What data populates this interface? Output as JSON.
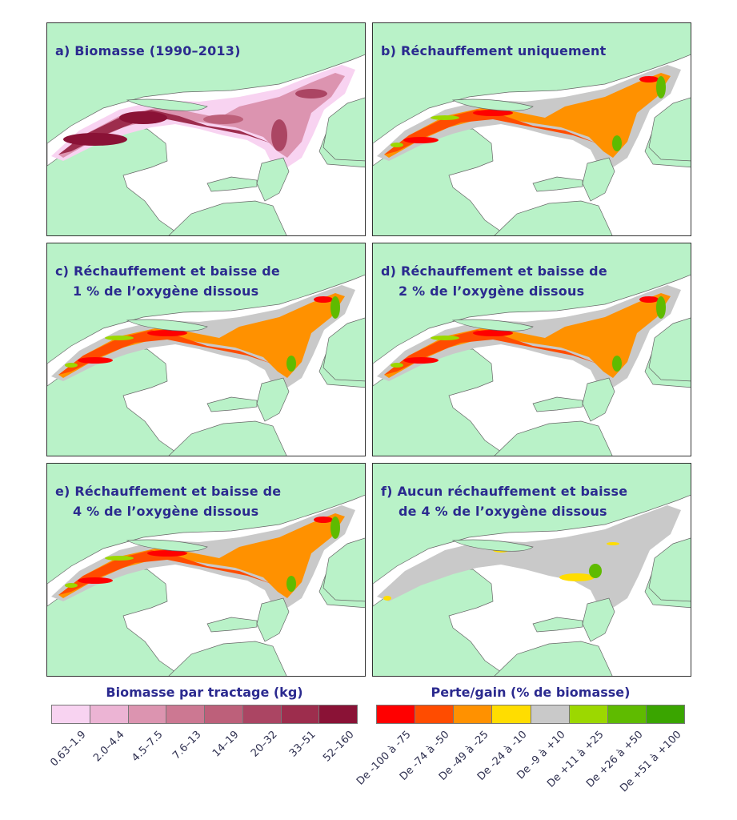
{
  "panels": [
    {
      "id": "a",
      "letter": "a)",
      "line1": "Biomasse (1990–2013)",
      "line2": "",
      "kind": "biomass"
    },
    {
      "id": "b",
      "letter": "b)",
      "line1": "Réchauffement uniquement",
      "line2": "",
      "kind": "warm"
    },
    {
      "id": "c",
      "letter": "c)",
      "line1": "Réchauffement et baisse de",
      "line2": "1 % de l’oxygène dissous",
      "kind": "warm"
    },
    {
      "id": "d",
      "letter": "d)",
      "line1": "Réchauffement et baisse de",
      "line2": "2 % de l’oxygène dissous",
      "kind": "warm"
    },
    {
      "id": "e",
      "letter": "e)",
      "line1": "Réchauffement et baisse de",
      "line2": "4 % de l’oxygène dissous",
      "kind": "warm"
    },
    {
      "id": "f",
      "letter": "f)",
      "line1": "Aucun réchauffement et baisse",
      "line2": "de 4 % de l’oxygène dissous",
      "kind": "oxygen"
    }
  ],
  "legend_biomass": {
    "title": "Biomasse par tractage (kg)",
    "classes": [
      "0.63–1.9",
      "2.0–4.4",
      "4.5–7.5",
      "7.6–13",
      "14–19",
      "20–32",
      "33–51",
      "52–160"
    ],
    "colors": [
      "#f8d3f1",
      "#ecb4d4",
      "#dc94b0",
      "#cc7892",
      "#bd607a",
      "#ab4563",
      "#9d2d4d",
      "#8a1236"
    ]
  },
  "legend_change": {
    "title": "Perte/gain (% de biomasse)",
    "classes": [
      "De -100 à -75",
      "De -74 à -50",
      "De -49 à -25",
      "De -24 à -10",
      "De -9 à +10",
      "De +11 à +25",
      "De +26 à +50",
      "De +51 à +100"
    ],
    "colors": [
      "#ff0000",
      "#ff4c00",
      "#ff9100",
      "#ffdd00",
      "#c9c9c9",
      "#9cd800",
      "#5fbb00",
      "#3aa500"
    ]
  },
  "colors": {
    "land": "#b9f2c8",
    "water": "#ffffff",
    "title_text": "#2b2a8f",
    "letter_highlight": "#3ee9d2"
  }
}
